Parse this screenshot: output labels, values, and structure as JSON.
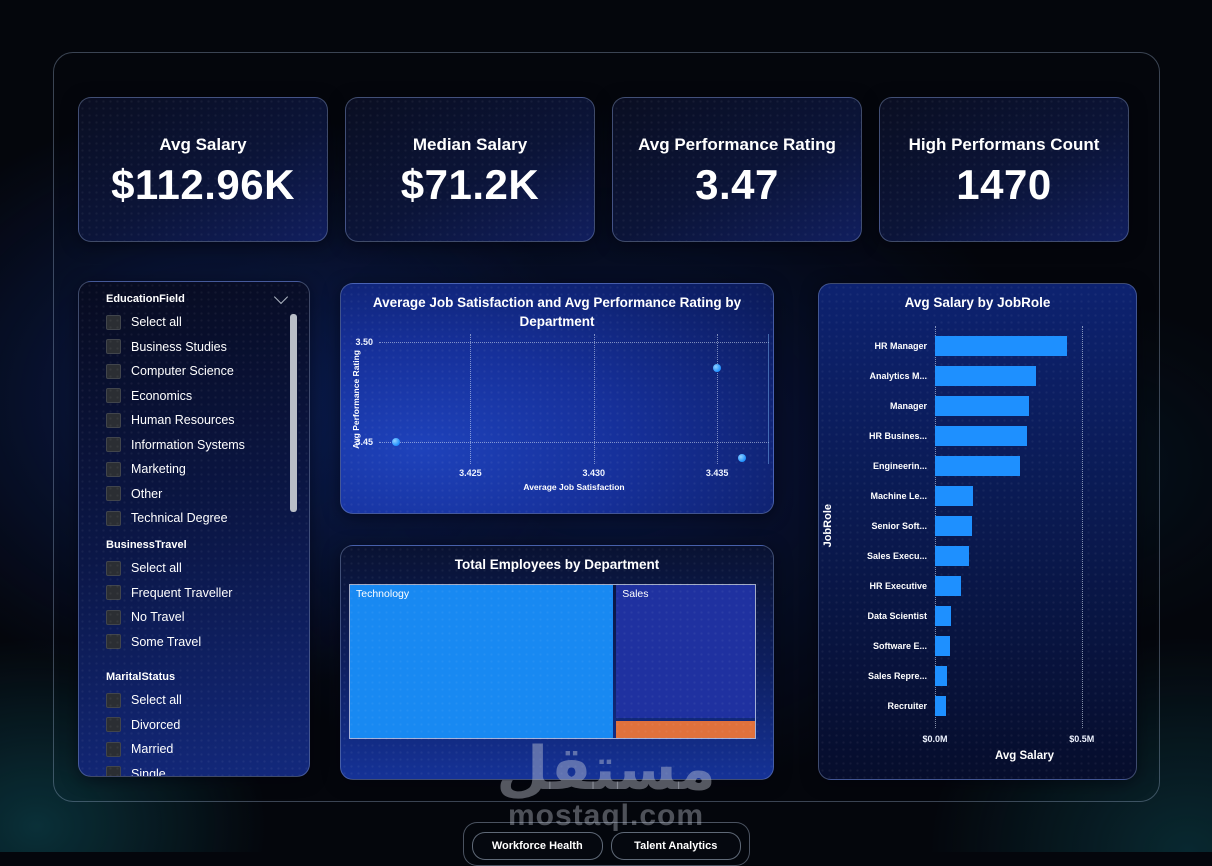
{
  "page": {
    "watermark_arabic": "مستقل",
    "watermark_domain": "mostaql.com"
  },
  "kpis": [
    {
      "title": "Avg Salary",
      "value": "$112.96K"
    },
    {
      "title": "Median Salary",
      "value": "$71.2K"
    },
    {
      "title": "Avg Performance Rating",
      "value": "3.47"
    },
    {
      "title": "High Performans Count",
      "value": "1470"
    }
  ],
  "filters": {
    "sections": [
      {
        "title": "EducationField",
        "chevron": true,
        "clipped": true,
        "items": [
          "Select all",
          "Business Studies",
          "Computer Science",
          "Economics",
          "Human Resources",
          "Information Systems",
          "Marketing",
          "Other",
          "Technical Degree"
        ]
      },
      {
        "title": "BusinessTravel",
        "chevron": false,
        "clipped": false,
        "items": [
          "Select all",
          "Frequent Traveller",
          "No Travel",
          "Some Travel"
        ]
      },
      {
        "title": "MaritalStatus",
        "chevron": false,
        "clipped": false,
        "items": [
          "Select all",
          "Divorced",
          "Married",
          "Single"
        ]
      }
    ]
  },
  "tabs": [
    {
      "label": "Workforce Health"
    },
    {
      "label": "Talent Analytics"
    }
  ],
  "chart_data": [
    {
      "type": "scatter",
      "title": "Average Job Satisfaction and Avg Performance Rating by Department",
      "xlabel": "Average Job Satisfaction",
      "ylabel": "Avg Performance Rating",
      "xlim": [
        3.4213,
        3.4371
      ],
      "ylim": [
        3.4388,
        3.5041
      ],
      "x_ticks": [
        {
          "value": 3.425,
          "label": "3.425"
        },
        {
          "value": 3.43,
          "label": "3.430"
        },
        {
          "value": 3.435,
          "label": "3.435"
        }
      ],
      "y_ticks": [
        {
          "value": 3.5,
          "label": "3.50"
        },
        {
          "value": 3.45,
          "label": "3.45"
        }
      ],
      "grid": true,
      "point_color": "#1e90ff",
      "points": [
        {
          "x": 3.422,
          "y": 3.45
        },
        {
          "x": 3.435,
          "y": 3.487
        },
        {
          "x": 3.436,
          "y": 3.442
        }
      ]
    },
    {
      "type": "bar",
      "orientation": "horizontal",
      "title": "Avg Salary by JobRole",
      "xlabel": "Avg Salary",
      "ylabel": "JobRole",
      "bar_color": "#1e90ff",
      "xlim": [
        0,
        0.61
      ],
      "x_ticks": [
        {
          "value": 0,
          "label": "$0.0M"
        },
        {
          "value": 0.5,
          "label": "$0.5M"
        }
      ],
      "categories": [
        "HR Manager",
        "Analytics M...",
        "Manager",
        "HR Busines...",
        "Engineerin...",
        "Machine Le...",
        "Senior Soft...",
        "Sales Execu...",
        "HR Executive",
        "Data Scientist",
        "Software E...",
        "Sales Repre...",
        "Recruiter"
      ],
      "values": [
        0.45,
        0.345,
        0.32,
        0.315,
        0.29,
        0.13,
        0.125,
        0.115,
        0.09,
        0.055,
        0.05,
        0.04,
        0.037
      ]
    },
    {
      "type": "treemap",
      "title": "Total Employees by Department",
      "tiles": [
        {
          "label": "Technology",
          "value": 961,
          "color": "#1889f2"
        },
        {
          "label": "Sales",
          "value": 446,
          "color": "#1f31a0"
        },
        {
          "label": "",
          "value": 63,
          "color": "#e0713c"
        }
      ]
    }
  ]
}
